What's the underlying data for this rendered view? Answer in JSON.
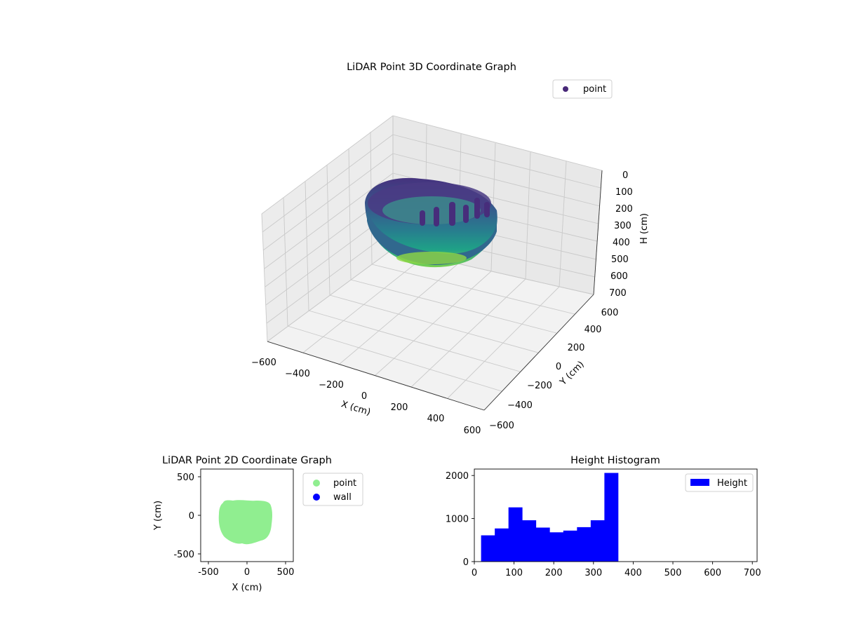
{
  "colors": {
    "point_dark": "#482878",
    "point_mid": "#21918c",
    "point_light": "#7ad151",
    "point_2d": "#90ee90",
    "wall": "#0000ff",
    "histogram": "#0000ff"
  },
  "chart_data": [
    {
      "type": "scatter",
      "title": "LiDAR Point 3D Coordinate Graph",
      "xlabel": "X (cm)",
      "ylabel": "Y (cm)",
      "zlabel": "H (cm)",
      "xlim": [
        -600,
        600
      ],
      "ylim": [
        -600,
        600
      ],
      "zlim": [
        0,
        700
      ],
      "z_inverted": true,
      "x_ticks": [
        "−600",
        "−400",
        "−200",
        "0",
        "200",
        "400",
        "600"
      ],
      "y_ticks": [
        "−600",
        "−400",
        "−200",
        "0",
        "200",
        "400",
        "600"
      ],
      "z_ticks": [
        "0",
        "100",
        "200",
        "300",
        "400",
        "500",
        "600",
        "700"
      ],
      "legend": [
        "point"
      ],
      "legend_position": "upper right",
      "colormap": "viridis",
      "grid": true,
      "shape": {
        "x_range": [
          -380,
          330
        ],
        "y_range": [
          -380,
          200
        ],
        "h_range": [
          20,
          360
        ]
      }
    },
    {
      "type": "scatter",
      "title": "LiDAR Point 2D Coordinate Graph",
      "xlabel": "X (cm)",
      "ylabel": "Y (cm)",
      "xlim": [
        -600,
        600
      ],
      "ylim": [
        -600,
        600
      ],
      "x_ticks": [
        -500,
        0,
        500
      ],
      "y_ticks": [
        -500,
        0,
        500
      ],
      "legend": [
        "point",
        "wall"
      ],
      "legend_position": "outside right",
      "shape": {
        "x_range": [
          -380,
          330
        ],
        "y_range": [
          -380,
          200
        ]
      }
    },
    {
      "type": "bar",
      "title": "Height Histogram",
      "series": [
        {
          "name": "Height"
        }
      ],
      "bin_edges": [
        17,
        51.5,
        86,
        120.5,
        155,
        189.5,
        224,
        258.5,
        293,
        327.5,
        362
      ],
      "values": [
        610,
        770,
        1260,
        960,
        790,
        680,
        720,
        800,
        960,
        2060
      ],
      "xlim": [
        0,
        712
      ],
      "ylim": [
        0,
        2150
      ],
      "x_ticks": [
        0,
        100,
        200,
        300,
        400,
        500,
        600,
        700
      ],
      "y_ticks": [
        0,
        1000,
        2000
      ],
      "legend_position": "upper right"
    }
  ]
}
